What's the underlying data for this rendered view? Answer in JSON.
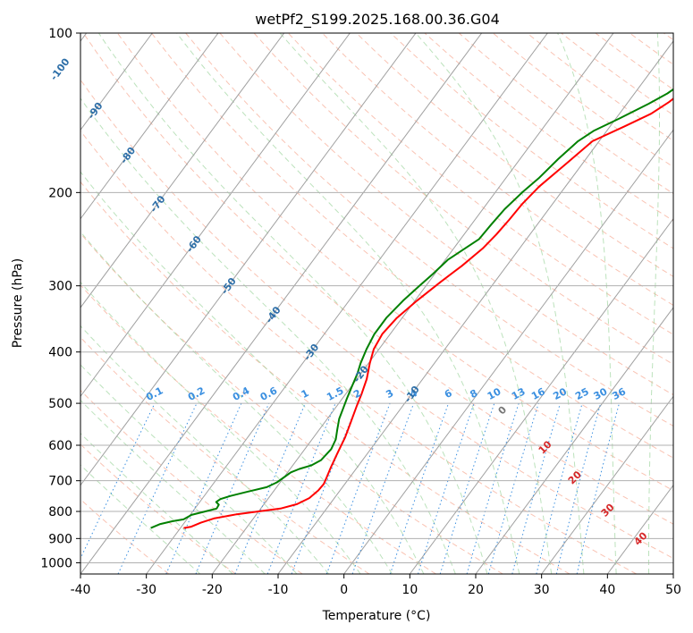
{
  "chart_data": {
    "type": "line",
    "title": "wetPf2_S199.2025.168.00.36.G04",
    "xlabel": "Temperature (°C)",
    "ylabel": "Pressure (hPa)",
    "xlim": [
      -40,
      50
    ],
    "ylim": [
      1050,
      100
    ],
    "y_scale": "log",
    "x_ticks": [
      "-40",
      "-30",
      "-20",
      "-10",
      "0",
      "10",
      "20",
      "30",
      "40",
      "50"
    ],
    "y_ticks": [
      "100",
      "200",
      "300",
      "400",
      "500",
      "600",
      "700",
      "800",
      "900",
      "1000"
    ],
    "grid": true,
    "series": [
      {
        "color": "#ff0000",
        "points": [
          [
            -29.5,
            860
          ],
          [
            -28.5,
            855
          ],
          [
            -27.5,
            840
          ],
          [
            -26,
            825
          ],
          [
            -23,
            810
          ],
          [
            -20,
            800
          ],
          [
            -17,
            790
          ],
          [
            -15,
            775
          ],
          [
            -13.8,
            755
          ],
          [
            -13.3,
            730
          ],
          [
            -13.2,
            710
          ],
          [
            -13.5,
            690
          ],
          [
            -14,
            660
          ],
          [
            -14.6,
            620
          ],
          [
            -15.2,
            580
          ],
          [
            -16,
            545
          ],
          [
            -17,
            505
          ],
          [
            -17.6,
            480
          ],
          [
            -18.5,
            450
          ],
          [
            -19.8,
            420
          ],
          [
            -20.8,
            395
          ],
          [
            -21.2,
            370
          ],
          [
            -20.8,
            345
          ],
          [
            -19.7,
            320
          ],
          [
            -18.2,
            295
          ],
          [
            -16.8,
            275
          ],
          [
            -15.6,
            255
          ],
          [
            -15.1,
            240
          ],
          [
            -14.8,
            225
          ],
          [
            -14.6,
            210
          ],
          [
            -14,
            195
          ],
          [
            -12.6,
            178
          ],
          [
            -11,
            160
          ],
          [
            -7.8,
            150
          ],
          [
            -5.2,
            142
          ],
          [
            -3.8,
            135
          ],
          [
            -2.8,
            128
          ],
          [
            -1.5,
            122
          ],
          [
            0,
            117
          ],
          [
            1,
            112
          ],
          [
            2.2,
            105
          ],
          [
            2.8,
            100
          ]
        ]
      },
      {
        "color": "#008000",
        "points": [
          [
            -34.5,
            860
          ],
          [
            -33.5,
            845
          ],
          [
            -32,
            835
          ],
          [
            -30.5,
            828
          ],
          [
            -29.8,
            812
          ],
          [
            -27.8,
            798
          ],
          [
            -26.7,
            790
          ],
          [
            -26.8,
            777
          ],
          [
            -27.5,
            768
          ],
          [
            -27.2,
            758
          ],
          [
            -26,
            748
          ],
          [
            -24,
            735
          ],
          [
            -21.5,
            720
          ],
          [
            -20.5,
            705
          ],
          [
            -20,
            690
          ],
          [
            -19.5,
            675
          ],
          [
            -18.6,
            665
          ],
          [
            -17.2,
            655
          ],
          [
            -16.3,
            640
          ],
          [
            -16,
            610
          ],
          [
            -16.4,
            585
          ],
          [
            -17.3,
            560
          ],
          [
            -18.2,
            535
          ],
          [
            -18.8,
            510
          ],
          [
            -19.3,
            490
          ],
          [
            -19.9,
            465
          ],
          [
            -20.5,
            440
          ],
          [
            -21.2,
            420
          ],
          [
            -21.9,
            395
          ],
          [
            -22.4,
            370
          ],
          [
            -22.4,
            345
          ],
          [
            -21.8,
            320
          ],
          [
            -21,
            300
          ],
          [
            -20.3,
            285
          ],
          [
            -19.6,
            268
          ],
          [
            -18.3,
            255
          ],
          [
            -17.2,
            245
          ],
          [
            -17,
            230
          ],
          [
            -16.7,
            215
          ],
          [
            -15.9,
            200
          ],
          [
            -15,
            188
          ],
          [
            -14.2,
            173
          ],
          [
            -13.2,
            160
          ],
          [
            -12,
            153
          ],
          [
            -9.5,
            145
          ],
          [
            -6.7,
            136
          ],
          [
            -5,
            130
          ],
          [
            -3.5,
            122
          ],
          [
            -1.2,
            113
          ],
          [
            2.5,
            100
          ]
        ]
      }
    ],
    "isotherm_labels": [
      "-100",
      "-90",
      "-80",
      "-70",
      "-60",
      "-50",
      "-40",
      "-30",
      "-20",
      "-10"
    ],
    "mixing_ratio_labels": [
      "0.1",
      "0.2",
      "0.4",
      "0.6",
      "1",
      "1.5",
      "2",
      "3",
      "4",
      "6",
      "8",
      "10",
      "13",
      "16",
      "20",
      "25",
      "30",
      "36"
    ],
    "moist_adiabat_labels": [
      "0",
      "10",
      "20",
      "30",
      "40"
    ]
  }
}
